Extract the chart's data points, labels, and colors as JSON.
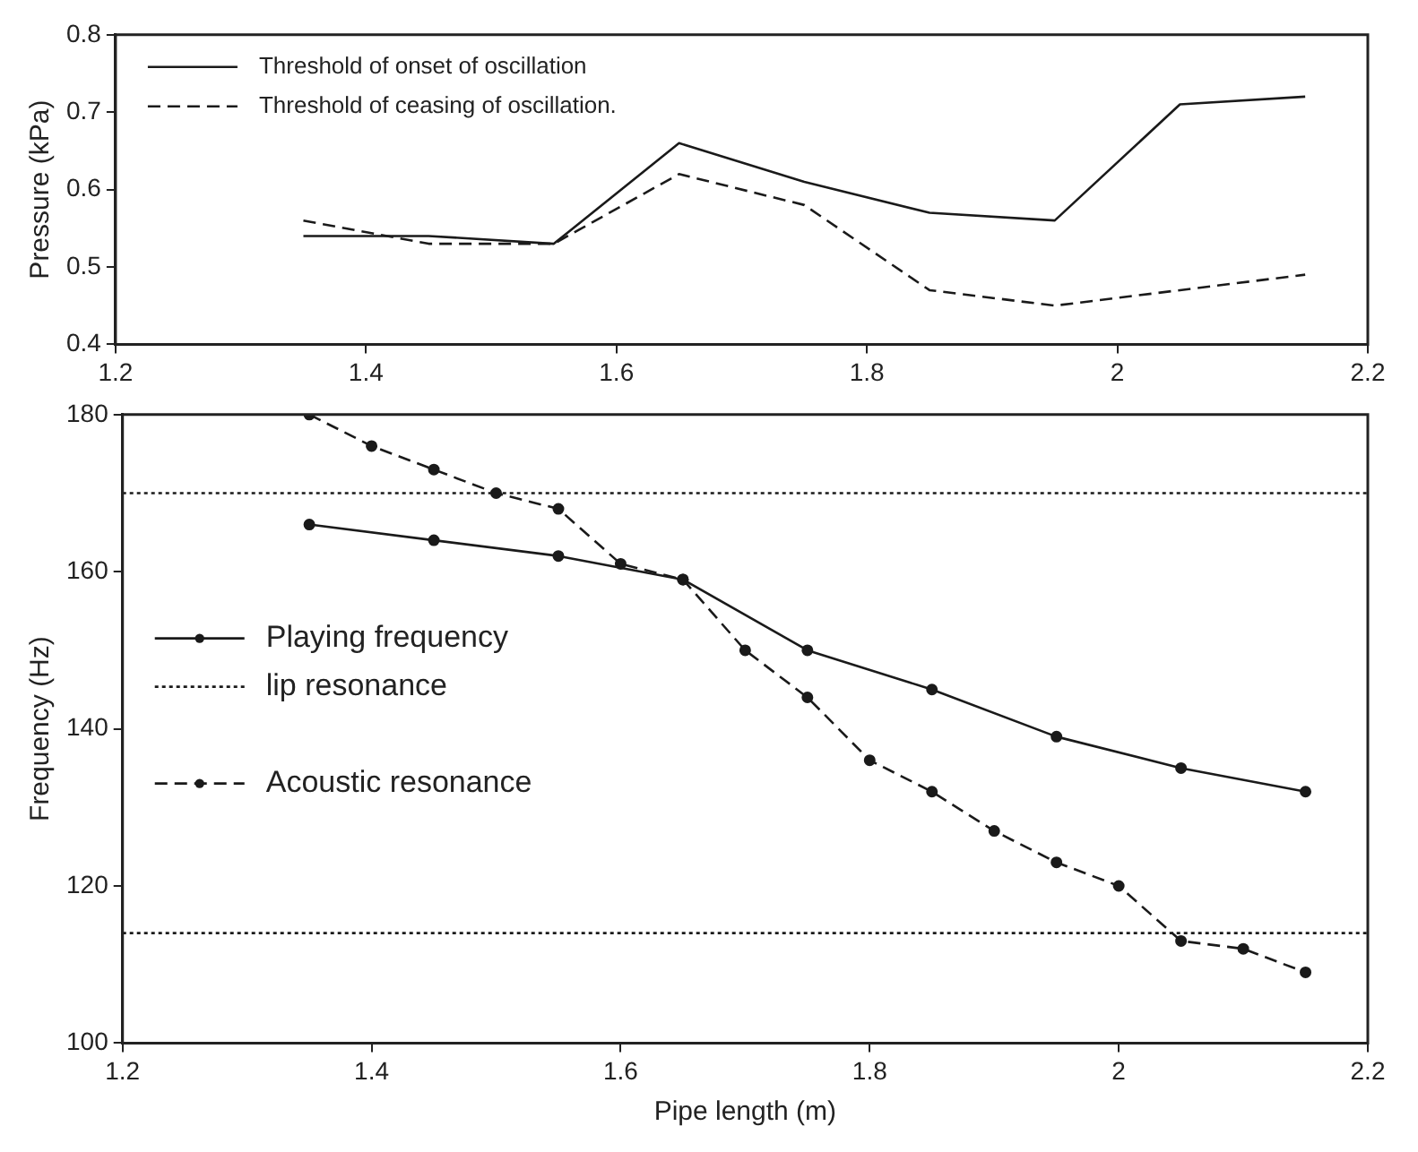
{
  "chart_data": [
    {
      "type": "line",
      "ylabel": "Pressure (kPa)",
      "x": [
        1.35,
        1.45,
        1.55,
        1.65,
        1.75,
        1.85,
        1.95,
        2.05,
        2.15
      ],
      "series": [
        {
          "name": "Threshold of onset of oscillation",
          "color": "#1a1a1a",
          "line_style": "solid",
          "values": [
            0.54,
            0.54,
            0.53,
            0.66,
            0.61,
            0.57,
            0.56,
            0.71,
            0.72
          ]
        },
        {
          "name": "Threshold of ceasing of oscillation.",
          "color": "#1a1a1a",
          "line_style": "dashed",
          "values": [
            0.56,
            0.53,
            0.53,
            0.62,
            0.58,
            0.47,
            0.45,
            0.47,
            0.49
          ]
        }
      ],
      "xlim": [
        1.2,
        2.2
      ],
      "xticks": [
        1.2,
        1.4,
        1.6,
        1.8,
        2,
        2.2
      ],
      "ylim": [
        0.4,
        0.8
      ],
      "yticks": [
        0.4,
        0.5,
        0.6,
        0.7,
        0.8
      ],
      "grid": false,
      "legend": "top left",
      "marker": "none"
    },
    {
      "type": "line",
      "xlabel": "Pipe length (m)",
      "ylabel": "Frequency (Hz)",
      "series": [
        {
          "name": "Playing frequency",
          "color": "#1a1a1a",
          "line_style": "solid",
          "marker": "circle",
          "x": [
            1.35,
            1.45,
            1.55,
            1.65,
            1.75,
            1.85,
            1.95,
            2.05,
            2.15
          ],
          "values": [
            166,
            164,
            162,
            159,
            150,
            145,
            139,
            135,
            132
          ]
        },
        {
          "name": "lip resonance",
          "color": "#1a1a1a",
          "line_style": "dotted",
          "marker": "none",
          "x": [
            1.2,
            2.2
          ],
          "values": [
            170,
            170
          ]
        },
        {
          "color": "#1a1a1a",
          "line_style": "dotted",
          "marker": "none",
          "x": [
            1.2,
            2.2
          ],
          "values": [
            114,
            114
          ]
        },
        {
          "name": "Acoustic resonance",
          "color": "#1a1a1a",
          "line_style": "dashed",
          "marker": "circle",
          "x": [
            1.35,
            1.4,
            1.45,
            1.5,
            1.55,
            1.6,
            1.65,
            1.7,
            1.75,
            1.8,
            1.85,
            1.9,
            1.95,
            2.0,
            2.05,
            2.1,
            2.15
          ],
          "values": [
            180,
            176,
            173,
            170,
            168,
            161,
            159,
            150,
            144,
            136,
            132,
            127,
            123,
            120,
            113,
            112,
            109
          ]
        }
      ],
      "xlim": [
        1.2,
        2.2
      ],
      "xticks": [
        1.2,
        1.4,
        1.6,
        1.8,
        2,
        2.2
      ],
      "ylim": [
        100,
        180
      ],
      "yticks": [
        100,
        120,
        140,
        160,
        180
      ],
      "grid": false,
      "legend": "left"
    }
  ]
}
